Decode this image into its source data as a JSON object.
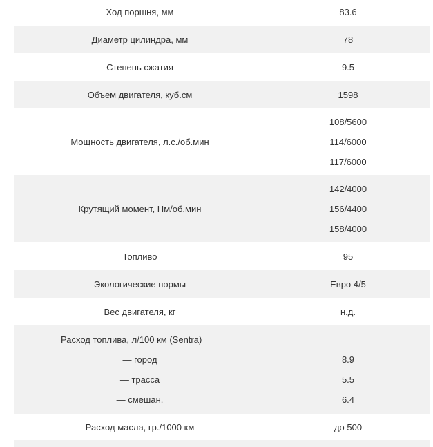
{
  "rows": [
    {
      "label": "Ход поршня, мм",
      "values": [
        "83.6"
      ]
    },
    {
      "label": "Диаметр цилиндра, мм",
      "values": [
        "78"
      ]
    },
    {
      "label": "Степень сжатия",
      "values": [
        "9.5"
      ]
    },
    {
      "label": "Объем двигателя, куб.см",
      "values": [
        "1598"
      ]
    },
    {
      "label": "Мощность двигателя, л.с./об.мин",
      "values": [
        "108/5600",
        "114/6000",
        "117/6000"
      ]
    },
    {
      "label": "Крутящий момент, Нм/об.мин",
      "values": [
        "142/4000",
        "156/4400",
        "158/4000"
      ]
    },
    {
      "label": "Топливо",
      "values": [
        "95"
      ]
    },
    {
      "label": "Экологические нормы",
      "values": [
        "Евро 4/5"
      ]
    },
    {
      "label": "Вес двигателя, кг",
      "values": [
        "н.д."
      ]
    }
  ],
  "fuel": {
    "label": "Расход  топлива, л/100 км (Sentra)",
    "items": [
      {
        "label": "— город",
        "value": "8.9"
      },
      {
        "label": "— трасса",
        "value": "5.5"
      },
      {
        "label": "— смешан.",
        "value": "6.4"
      }
    ]
  },
  "oil": {
    "label": "Расход масла, гр./1000 км",
    "value": "до 500"
  }
}
